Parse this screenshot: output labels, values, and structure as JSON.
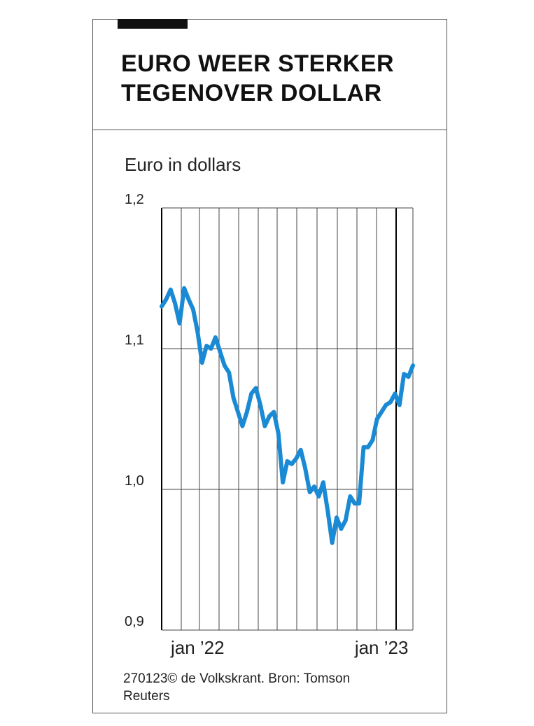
{
  "chart_data": {
    "type": "line",
    "title": "EURO WEER STERKER TEGENOVER DOLLAR",
    "subtitle": "Euro in dollars",
    "source": "270123© de Volkskrant. Bron: Tomson Reuters",
    "categories": [
      null,
      null,
      null,
      null,
      null,
      null,
      null,
      null,
      "jan ’22",
      null,
      null,
      null,
      null,
      null,
      null,
      null,
      null,
      null,
      null,
      null,
      null,
      null,
      null,
      null,
      null,
      null,
      null,
      null,
      null,
      null,
      null,
      null,
      null,
      null,
      null,
      null,
      null,
      null,
      null,
      null,
      null,
      null,
      null,
      null,
      null,
      null,
      null,
      null,
      null,
      "jan ’23",
      null,
      null,
      null,
      null,
      null,
      null,
      null
    ],
    "series": [
      {
        "name": "Euro in dollars",
        "color": "#1a8ad4",
        "values": [
          1.13,
          1.135,
          1.142,
          1.132,
          1.118,
          1.143,
          1.135,
          1.128,
          1.112,
          1.09,
          1.102,
          1.1,
          1.108,
          1.098,
          1.088,
          1.083,
          1.065,
          1.055,
          1.045,
          1.055,
          1.068,
          1.072,
          1.06,
          1.045,
          1.052,
          1.055,
          1.04,
          1.005,
          1.02,
          1.018,
          1.022,
          1.028,
          1.015,
          0.998,
          1.002,
          0.995,
          1.005,
          0.985,
          0.962,
          0.98,
          0.972,
          0.978,
          0.995,
          0.99,
          0.99,
          1.03,
          1.03,
          1.035,
          1.05,
          1.055,
          1.06,
          1.062,
          1.068,
          1.06,
          1.082,
          1.08,
          1.088
        ]
      }
    ],
    "ylim": [
      0.9,
      1.2
    ],
    "yticks": [
      {
        "value": 0.9,
        "label": "0,9"
      },
      {
        "value": 1.0,
        "label": "1,0"
      },
      {
        "value": 1.1,
        "label": "1,1"
      },
      {
        "value": 1.2,
        "label": "1,2"
      }
    ],
    "grid": true
  }
}
